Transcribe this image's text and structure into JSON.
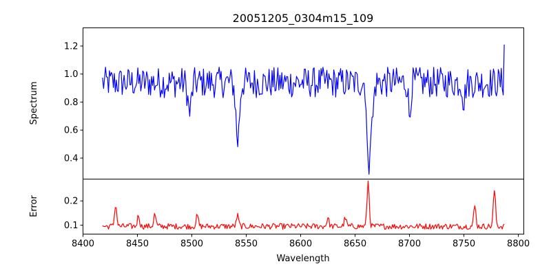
{
  "chart_data": [
    {
      "type": "line",
      "title": "20051205_0304m15_109",
      "ylabel": "Spectrum",
      "xlabel": "",
      "xlim": [
        8400,
        8805
      ],
      "ylim": [
        0.25,
        1.33
      ],
      "yticks": [
        0.4,
        0.6,
        0.8,
        1.0,
        1.2
      ],
      "ytick_labels": [
        "0.4",
        "0.6",
        "0.8",
        "1.0",
        "1.2"
      ],
      "grid": false,
      "series": [
        {
          "color": "#0000ff",
          "x_start": 8418,
          "x_end": 8787,
          "noise_amplitude": 0.11,
          "continuum": 0.94,
          "features": [
            {
              "center": 8498.0,
              "depth": 0.22,
              "width": 1.6
            },
            {
              "center": 8542.1,
              "depth": 0.42,
              "width": 1.6
            },
            {
              "center": 8662.1,
              "depth": 0.64,
              "width": 1.2
            },
            {
              "center": 8665.5,
              "depth": 0.3,
              "width": 1.4
            },
            {
              "center": 8700.0,
              "depth": 0.25,
              "width": 1.0
            },
            {
              "center": 8750.0,
              "depth": 0.15,
              "width": 1.0
            }
          ],
          "end_value": 1.21
        }
      ]
    },
    {
      "type": "line",
      "title": "",
      "ylabel": "Error",
      "xlabel": "Wavelength",
      "xlim": [
        8400,
        8805
      ],
      "ylim": [
        0.063,
        0.29
      ],
      "xticks": [
        8400,
        8450,
        8500,
        8550,
        8600,
        8650,
        8700,
        8750,
        8800
      ],
      "xtick_labels": [
        "8400",
        "8450",
        "8500",
        "8550",
        "8600",
        "8650",
        "8700",
        "8750",
        "8800"
      ],
      "yticks": [
        0.1,
        0.2
      ],
      "ytick_labels": [
        "0.1",
        "0.2"
      ],
      "grid": false,
      "series": [
        {
          "color": "#ff0000",
          "x_start": 8418,
          "x_end": 8787,
          "baseline": 0.095,
          "noise_amplitude": 0.012,
          "peaks": [
            {
              "center": 8430.0,
              "height": 0.185
            },
            {
              "center": 8451.0,
              "height": 0.14
            },
            {
              "center": 8466.0,
              "height": 0.145
            },
            {
              "center": 8505.0,
              "height": 0.14
            },
            {
              "center": 8542.0,
              "height": 0.14
            },
            {
              "center": 8625.0,
              "height": 0.13
            },
            {
              "center": 8641.0,
              "height": 0.13
            },
            {
              "center": 8662.0,
              "height": 0.28
            },
            {
              "center": 8760.0,
              "height": 0.18
            },
            {
              "center": 8778.0,
              "height": 0.245
            }
          ]
        }
      ]
    }
  ]
}
